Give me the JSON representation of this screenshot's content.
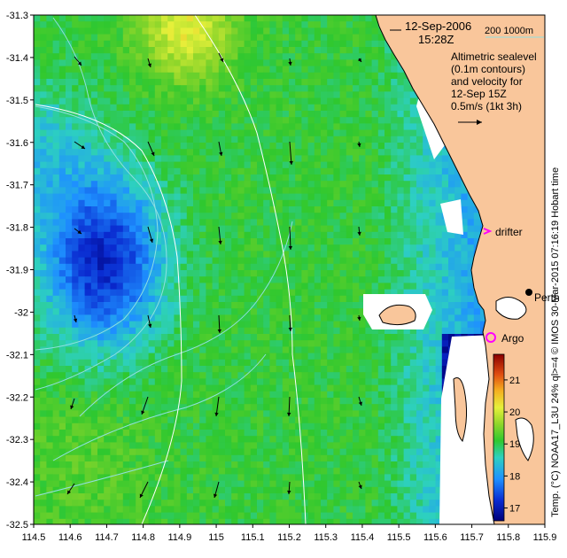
{
  "map": {
    "date": "12-Sep-2006",
    "time": "15:28Z",
    "isobath_legend": "200  1000m",
    "altimetry_caption": [
      "Altimetric sealevel",
      "(0.1m contours)",
      "and velocity for",
      "12-Sep 15Z"
    ],
    "velocity_scale": "0.5m/s (1kt 3h)",
    "drifter_label": "drifter",
    "argo_label": "Argo",
    "perth_label": "Perth",
    "colorbar_caption": "Temp. (°C) NOAA17_L3U 24% ql>=4",
    "credit": "© IMOS 30-Mar-2015 07:16:19 Hobart time",
    "colorbar_ticks": [
      "21",
      "20",
      "19",
      "18",
      "17"
    ],
    "colorbar_range": [
      16.6,
      21.8
    ],
    "lon_ticks": [
      "114.5",
      "114.6",
      "114.7",
      "114.8",
      "114.9",
      "115",
      "115.1",
      "115.2",
      "115.3",
      "115.4",
      "115.5",
      "115.6",
      "115.7",
      "115.8",
      "115.9"
    ],
    "lat_ticks": [
      "-31.3",
      "-31.4",
      "-31.5",
      "-31.6",
      "-31.7",
      "-31.8",
      "-31.9",
      "-32",
      "-32.1",
      "-32.2",
      "-32.3",
      "-32.4",
      "-32.5"
    ],
    "lon_range": [
      114.5,
      115.9
    ],
    "lat_range": [
      -32.5,
      -31.3
    ],
    "colors": {
      "land": "#f9c69b",
      "coast": "#000000",
      "isobath": "#ffffff",
      "sla_contour": "#8fe0e0",
      "marker": "#ff00ff",
      "cloud": "#ffffff"
    }
  }
}
